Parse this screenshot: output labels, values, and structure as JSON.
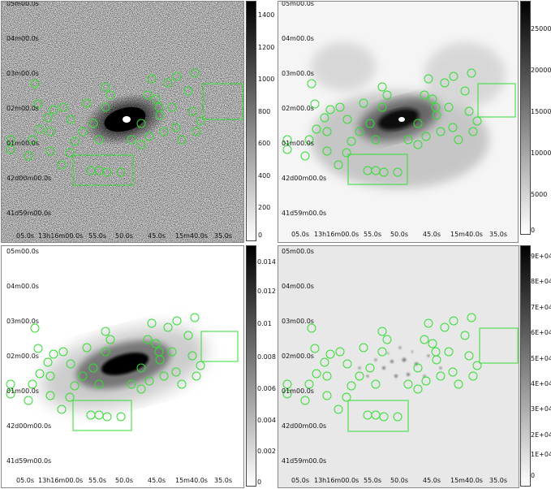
{
  "figure": {
    "panels": [
      {
        "id": "tl",
        "ra_labels": [
          "05.0s",
          "13h16m00.0s",
          "55.0s",
          "50.0s",
          "45.0s",
          "15m40.0s",
          "35.0s"
        ],
        "dec_labels": [
          "05m00.0s",
          "04m00.0s",
          "03m00.0s",
          "02m00.0s",
          "01m00.0s",
          "42d00m00.0s",
          "41d59m00.0s"
        ],
        "colorbar_ticks": [
          "1400",
          "1200",
          "1000",
          "800",
          "600",
          "400",
          "200",
          "0"
        ]
      },
      {
        "id": "tr",
        "ra_labels": [
          "05.0s",
          "13h16m00.0s",
          "55.0s",
          "50.0s",
          "45.0s",
          "15m40.0s",
          "35.0s"
        ],
        "dec_labels": [
          "05m00.0s",
          "04m00.0s",
          "03m00.0s",
          "02m00.0s",
          "01m00.0s",
          "42d00m00.0s",
          "41d59m00.0s"
        ],
        "colorbar_ticks": [
          "25000",
          "20000",
          "15000",
          "10000",
          "5000",
          "0"
        ]
      },
      {
        "id": "bl",
        "ra_labels": [
          "05.0s",
          "13h16m00.0s",
          "55.0s",
          "50.0s",
          "45.0s",
          "15m40.0s",
          "35.0s"
        ],
        "dec_labels": [
          "05m00.0s",
          "04m00.0s",
          "03m00.0s",
          "02m00.0s",
          "01m00.0s",
          "42d00m00.0s",
          "41d59m00.0s"
        ],
        "colorbar_ticks": [
          "0.014",
          "0.012",
          "0.01",
          "0.008",
          "0.006",
          "0.004",
          "0.002",
          "0"
        ]
      },
      {
        "id": "br",
        "ra_labels": [
          "05.0s",
          "13h16m00.0s",
          "55.0s",
          "50.0s",
          "45.0s",
          "15m40.0s",
          "35.0s"
        ],
        "dec_labels": [
          "05m00.0s",
          "04m00.0s",
          "03m00.0s",
          "02m00.0s",
          "01m00.0s",
          "42d00m00.0s",
          "41d59m00.0s"
        ],
        "colorbar_ticks": [
          "9E+04",
          "8E+04",
          "7E+04",
          "6E+04",
          "5E+04",
          "4E+04",
          "3E+04",
          "2E+04",
          "1E+04",
          "0"
        ]
      }
    ],
    "colors": {
      "region": "#33dd33",
      "cbar_top": "#000000",
      "cbar_bottom": "#ffffff"
    }
  }
}
